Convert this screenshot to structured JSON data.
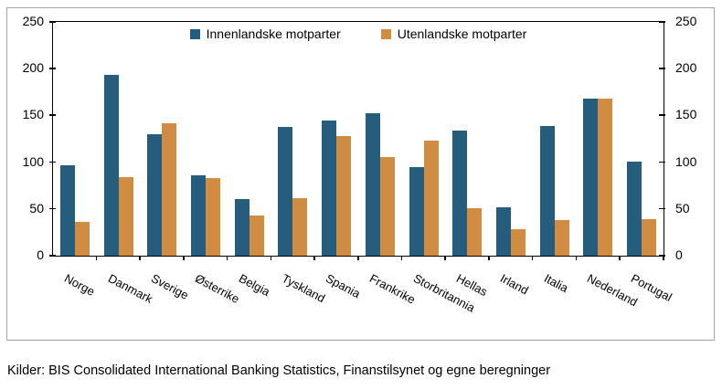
{
  "chart_data": {
    "type": "bar",
    "title": "",
    "xlabel": "",
    "ylabel": "",
    "categories": [
      "Norge",
      "Danmark",
      "Sverige",
      "Østerrike",
      "Belgia",
      "Tyskland",
      "Spania",
      "Frankrike",
      "Storbritannia",
      "Hellas",
      "Irland",
      "Italia",
      "Nederland",
      "Portugal"
    ],
    "series": [
      {
        "name": "Innenlandske motparter",
        "color": "#265d7c",
        "values": [
          97,
          193,
          130,
          86,
          61,
          138,
          145,
          152,
          95,
          134,
          52,
          139,
          168,
          101
        ]
      },
      {
        "name": "Utenlandske motparter",
        "color": "#cf8c42",
        "values": [
          36,
          84,
          142,
          83,
          43,
          62,
          128,
          105,
          123,
          51,
          28,
          38,
          168,
          39
        ]
      }
    ],
    "ylim": [
      0,
      250
    ],
    "yticks": [
      0,
      50,
      100,
      150,
      200,
      250
    ],
    "grid": false,
    "legend_position": "top-center",
    "x_label_rotation_deg": 28
  },
  "caption": "Kilder: BIS Consolidated International Banking Statistics, Finanstilsynet og egne beregninger",
  "colors": {
    "axis": "#000000",
    "frame_border": "#a3a3a3",
    "background": "#ffffff",
    "text": "#000000"
  }
}
